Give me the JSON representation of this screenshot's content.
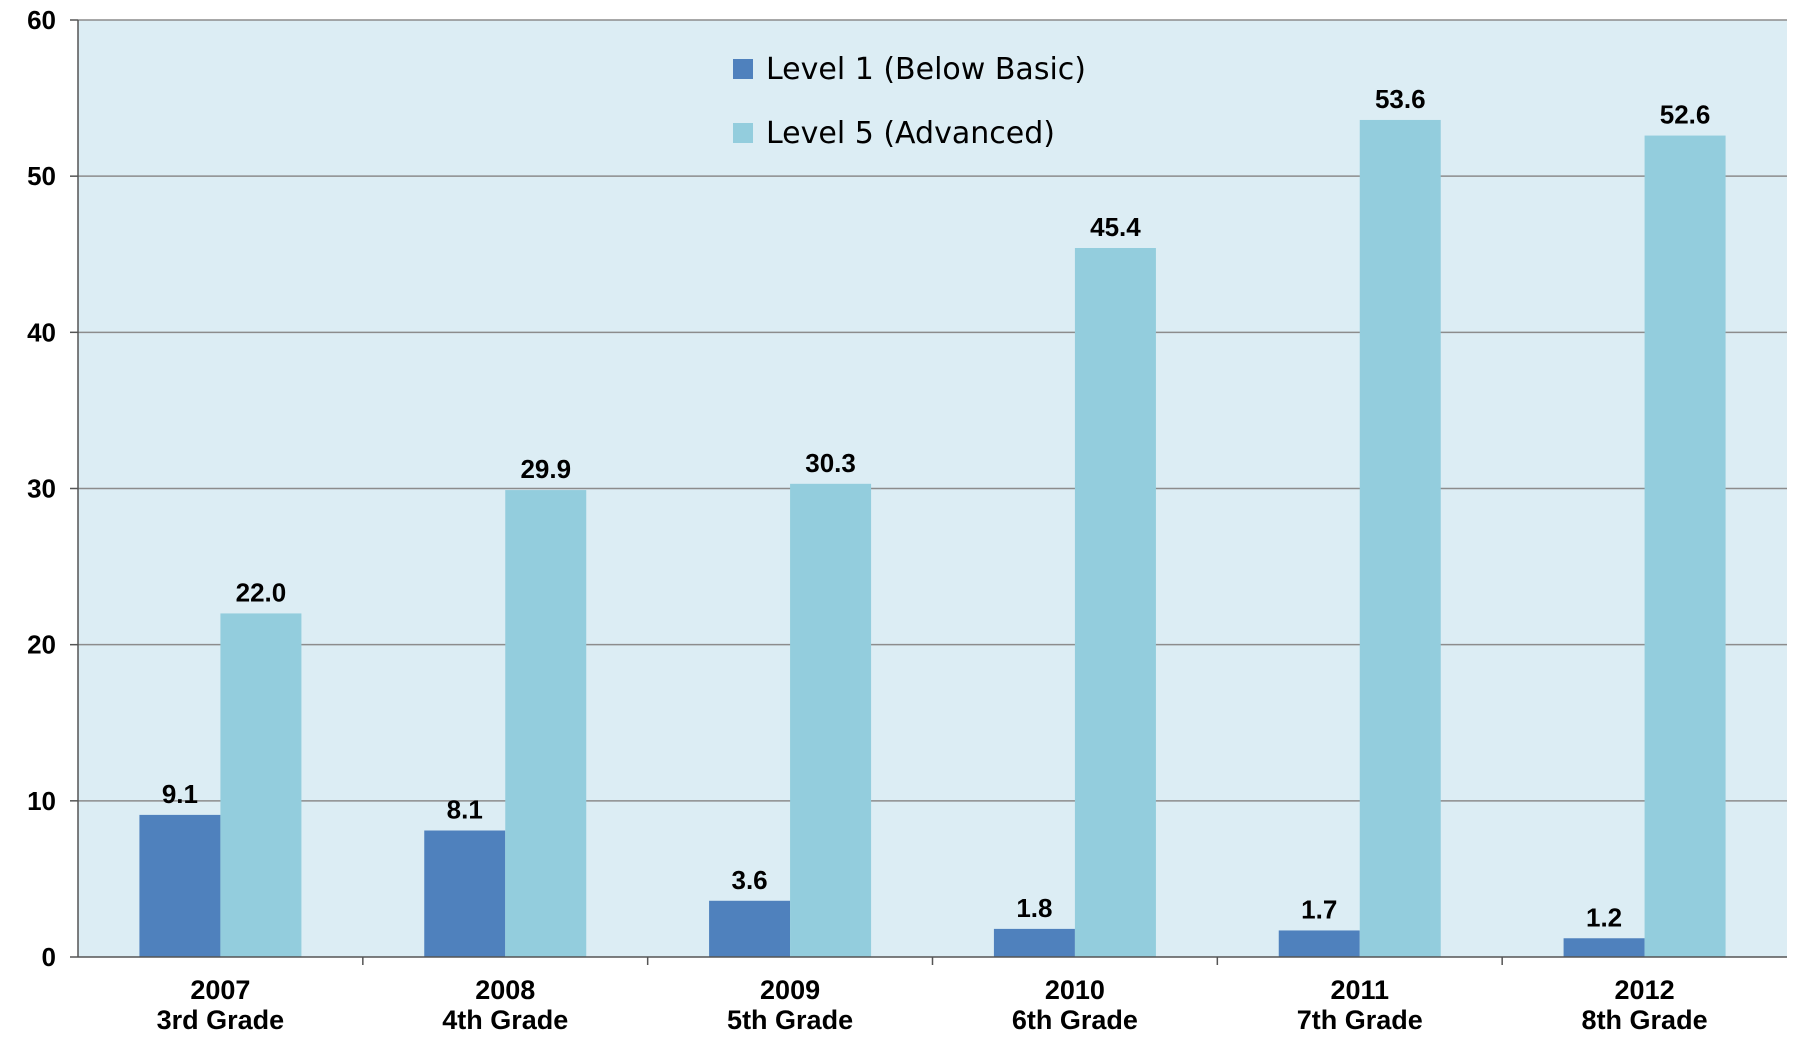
{
  "chart_data": {
    "type": "bar",
    "title": "",
    "xlabel": "",
    "ylabel": "",
    "ylim": [
      0,
      60
    ],
    "yticks": [
      0,
      10,
      20,
      30,
      40,
      50,
      60
    ],
    "grid": true,
    "legend_position": "top-center",
    "categories": [
      [
        "2007",
        "3rd Grade"
      ],
      [
        "2008",
        "4th Grade"
      ],
      [
        "2009",
        "5th Grade"
      ],
      [
        "2010",
        "6th Grade"
      ],
      [
        "2011",
        "7th Grade"
      ],
      [
        "2012",
        "8th Grade"
      ]
    ],
    "series": [
      {
        "name": "Level 1 (Below Basic)",
        "color": "#4f81bd",
        "values": [
          9.1,
          8.1,
          3.6,
          1.8,
          1.7,
          1.2
        ],
        "labels": [
          "9.1",
          "8.1",
          "3.6",
          "1.8",
          "1.7",
          "1.2"
        ]
      },
      {
        "name": "Level 5 (Advanced)",
        "color": "#93cddd",
        "values": [
          22.0,
          29.9,
          30.3,
          45.4,
          53.6,
          52.6
        ],
        "labels": [
          "22.0",
          "29.9",
          "30.3",
          "45.4",
          "53.6",
          "52.6"
        ]
      }
    ],
    "plot_background": "#dcedf4",
    "gridline_color": "#8c8c8c"
  }
}
